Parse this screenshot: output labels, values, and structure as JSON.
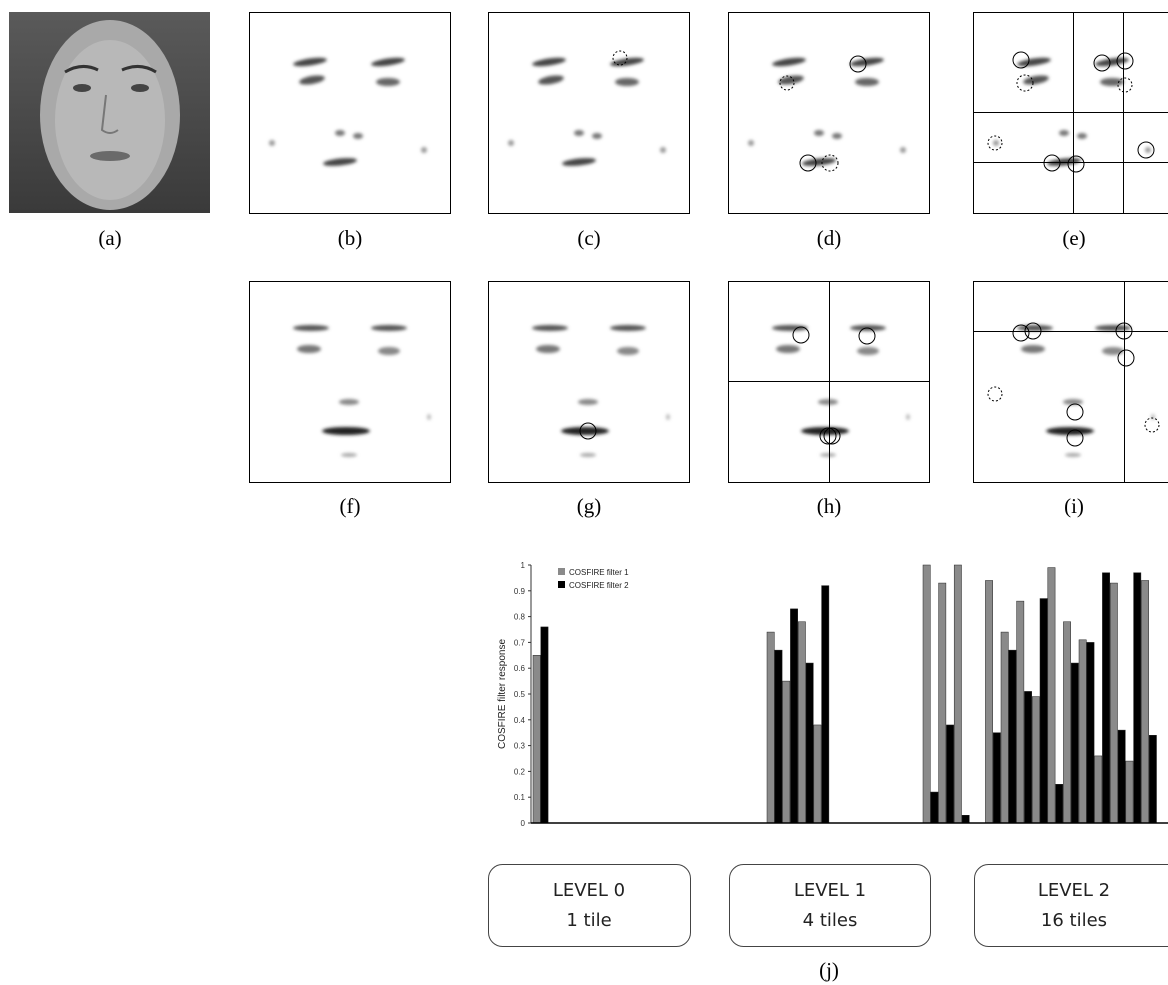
{
  "panel_labels": [
    "(a)",
    "(b)",
    "(c)",
    "(d)",
    "(e)",
    "(f)",
    "(g)",
    "(h)",
    "(i)"
  ],
  "chart_label": "(j)",
  "levels": [
    {
      "title": "LEVEL 0",
      "tiles": "1 tile"
    },
    {
      "title": "LEVEL 1",
      "tiles": "4 tiles"
    },
    {
      "title": "LEVEL 2",
      "tiles": "16 tiles"
    }
  ],
  "chart_data": {
    "type": "bar",
    "ylabel": "COSFIRE filter response",
    "categories": [
      null,
      null,
      null,
      null,
      null,
      null,
      null,
      null,
      null,
      null,
      null,
      null,
      null,
      null,
      null,
      null,
      null,
      null,
      null,
      null,
      null,
      null,
      null,
      null,
      null,
      null,
      null,
      null,
      null,
      null,
      null,
      null,
      null,
      null,
      null,
      null,
      null,
      null,
      null,
      null
    ],
    "series": [
      {
        "name": "COSFIRE filter 1",
        "color": "#8a8a8a",
        "values": [
          0.65,
          null,
          null,
          null,
          null,
          null,
          null,
          null,
          null,
          null,
          null,
          null,
          null,
          null,
          null,
          0.74,
          0.55,
          0.78,
          0.38,
          null,
          null,
          null,
          null,
          null,
          null,
          1.0,
          0.93,
          1.0,
          null,
          0.94,
          0.74,
          0.86,
          0.49,
          0.99,
          0.78,
          0.71,
          0.26,
          0.93,
          0.24,
          0.94
        ]
      },
      {
        "name": "COSFIRE filter 2",
        "color": "#000000",
        "values": [
          0.76,
          null,
          null,
          null,
          null,
          null,
          null,
          null,
          null,
          null,
          null,
          null,
          null,
          null,
          null,
          0.67,
          0.83,
          0.62,
          0.92,
          null,
          null,
          null,
          null,
          null,
          null,
          0.12,
          0.38,
          0.03,
          null,
          0.35,
          0.67,
          0.51,
          0.87,
          0.15,
          0.62,
          0.7,
          0.97,
          0.36,
          0.97,
          0.34
        ]
      }
    ],
    "ylim": [
      0,
      1
    ],
    "yticks": [
      0,
      0.1,
      0.2,
      0.3,
      0.4,
      0.5,
      0.6,
      0.7,
      0.8,
      0.9,
      1
    ],
    "legend": "upper left"
  }
}
